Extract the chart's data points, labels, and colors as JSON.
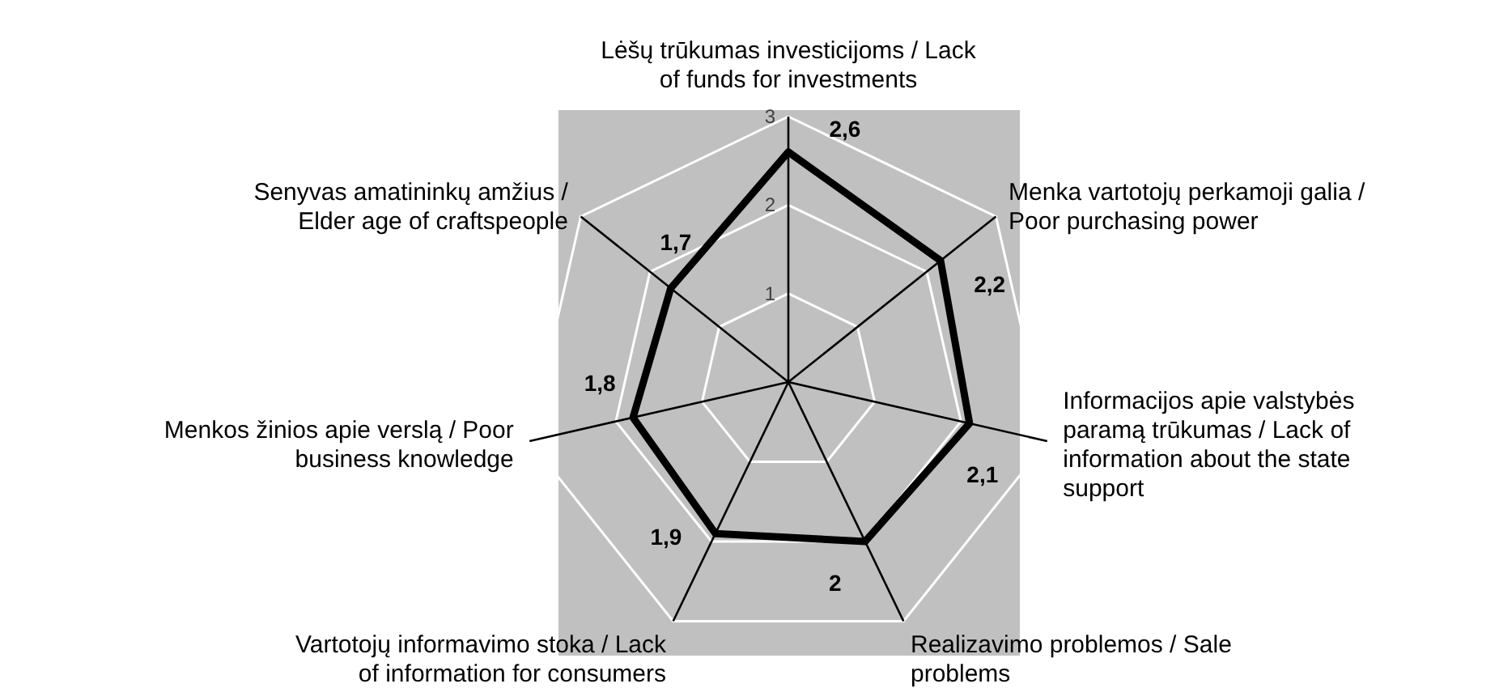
{
  "chart_data": {
    "type": "radar",
    "categories": [
      "Lėšų trūkumas investicijoms / Lack of funds for investments",
      "Menka vartotojų perkamoji galia / Poor purchasing power",
      "Informacijos apie valstybės paramą trūkumas / Lack of information about the state support",
      "Realizavimo problemos / Sale problems",
      "Vartotojų informavimo stoka / Lack of information for consumers",
      "Menkos žinios apie verslą / Poor business knowledge",
      "Senyvas amatininkų amžius / Elder age of craftspeople"
    ],
    "series": [
      {
        "color": "#000000",
        "values": [
          2.6,
          2.2,
          2.1,
          2,
          1.9,
          1.8,
          1.7
        ],
        "value_labels": [
          "2,6",
          "2,2",
          "2,1",
          "2",
          "1,9",
          "1,8",
          "1,7"
        ]
      }
    ],
    "ylim": [
      0,
      3
    ],
    "yticks": [
      1,
      2,
      3
    ]
  }
}
